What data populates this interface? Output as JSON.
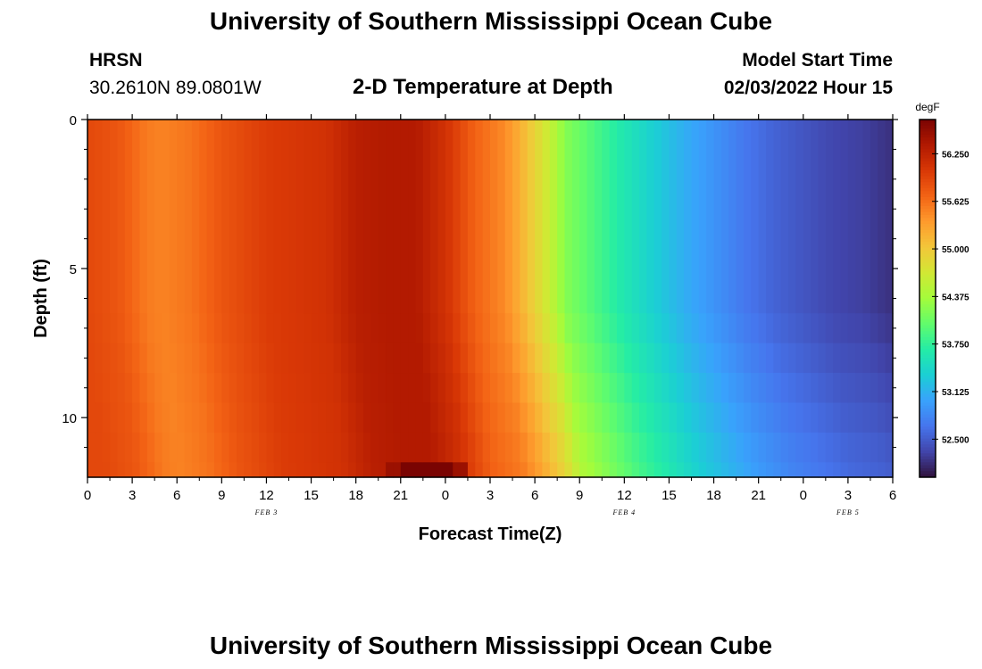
{
  "page": {
    "title": "University of Southern Mississippi Ocean Cube",
    "footer_title": "University of Southern Mississippi Ocean Cube",
    "station_name": "HRSN",
    "station_coords": "30.2610N  89.0801W",
    "plot_title": "2-D Temperature at Depth",
    "model_start_label": "Model Start Time",
    "model_start_value": "02/03/2022 Hour 15"
  },
  "chart_data": {
    "type": "heatmap",
    "title": "2-D Temperature at Depth",
    "xlabel": "Forecast Time(Z)",
    "ylabel": "Depth (ft)",
    "x_range_hours": [
      0,
      54
    ],
    "x_ticks": [
      "0",
      "3",
      "6",
      "9",
      "12",
      "15",
      "18",
      "21",
      "0",
      "3",
      "6",
      "9",
      "12",
      "15",
      "18",
      "21",
      "0",
      "3",
      "6"
    ],
    "date_labels": [
      {
        "label": "FEB 3",
        "hour": 12
      },
      {
        "label": "FEB 4",
        "hour": 36
      },
      {
        "label": "FEB 5",
        "hour": 51
      }
    ],
    "y_range_ft": [
      0,
      12
    ],
    "y_ticks": [
      "0",
      "5",
      "10"
    ],
    "y_tick_values": [
      0,
      5,
      10
    ],
    "colorbar": {
      "unit": "degF",
      "min": 52.0,
      "max": 56.7,
      "tick_labels": [
        "56.250",
        "55.625",
        "55.000",
        "54.375",
        "53.750",
        "53.125",
        "52.500"
      ],
      "tick_values": [
        56.25,
        55.625,
        55.0,
        54.375,
        53.75,
        53.125,
        52.5
      ],
      "colors": [
        "#30123b",
        "#4145ab",
        "#4675ed",
        "#39a2fc",
        "#1bcfd4",
        "#24eca6",
        "#61fc6c",
        "#a4fc3b",
        "#d1e834",
        "#f3c63a",
        "#fe9b2d",
        "#f36315",
        "#d93806",
        "#b11901",
        "#7a0402"
      ]
    },
    "surface_temperature_series": {
      "hours": [
        0,
        2,
        4,
        5,
        7,
        9,
        12,
        16,
        18,
        20,
        22,
        24,
        26,
        28,
        29,
        30,
        31,
        32,
        34,
        36,
        38,
        40,
        42,
        44,
        46,
        48,
        50,
        52,
        54
      ],
      "values_degF": [
        55.9,
        55.8,
        55.55,
        55.5,
        55.6,
        55.8,
        56.0,
        56.1,
        56.3,
        56.35,
        56.35,
        56.1,
        55.7,
        55.45,
        55.2,
        54.9,
        54.6,
        54.2,
        53.9,
        53.6,
        53.35,
        53.1,
        52.9,
        52.7,
        52.55,
        52.45,
        52.35,
        52.3,
        52.2
      ]
    },
    "depth_profile_note": "Below ~6.5 ft the cooling front arrives later; warmest cell (~56.7 degF) near bottom at hour ~23"
  }
}
